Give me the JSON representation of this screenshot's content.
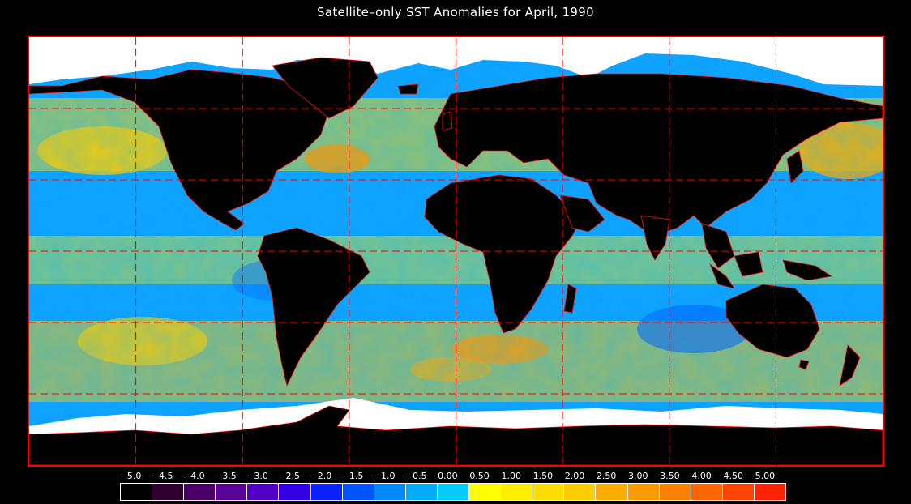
{
  "title": "Satellite–only SST Anomalies for April, 1990",
  "map": {
    "projection": "equirectangular",
    "longitude_range": [
      -180,
      180
    ],
    "latitude_range": [
      -90,
      90
    ],
    "graticule": {
      "lon_step": 45,
      "lat_step": 30,
      "style": "dashed",
      "color": "#ff0000"
    },
    "frame_color": "#ff0000",
    "land_color": "#000000",
    "ice_color": "#ffffff",
    "border_color": "#ff0000"
  },
  "colorbar": {
    "ticks": [
      "−5.0",
      "−4.5",
      "−4.0",
      "−3.5",
      "−3.0",
      "−2.5",
      "−2.0",
      "−1.5",
      "−1.0",
      "−0.5",
      "0.00",
      "0.50",
      "1.00",
      "1.50",
      "2.00",
      "2.50",
      "3.00",
      "3.50",
      "4.00",
      "4.50",
      "5.00"
    ],
    "colors": [
      "#000000",
      "#300030",
      "#4a0066",
      "#5a0099",
      "#5000c8",
      "#3300e6",
      "#0a22ff",
      "#0055ff",
      "#0088ff",
      "#00aaff",
      "#00ccff",
      "#ffff00",
      "#ffee00",
      "#ffdd00",
      "#ffcc00",
      "#ffaa00",
      "#ff9900",
      "#ff8000",
      "#ff6600",
      "#ff4400",
      "#ff2200"
    ],
    "min": -5.0,
    "max": 5.0
  }
}
